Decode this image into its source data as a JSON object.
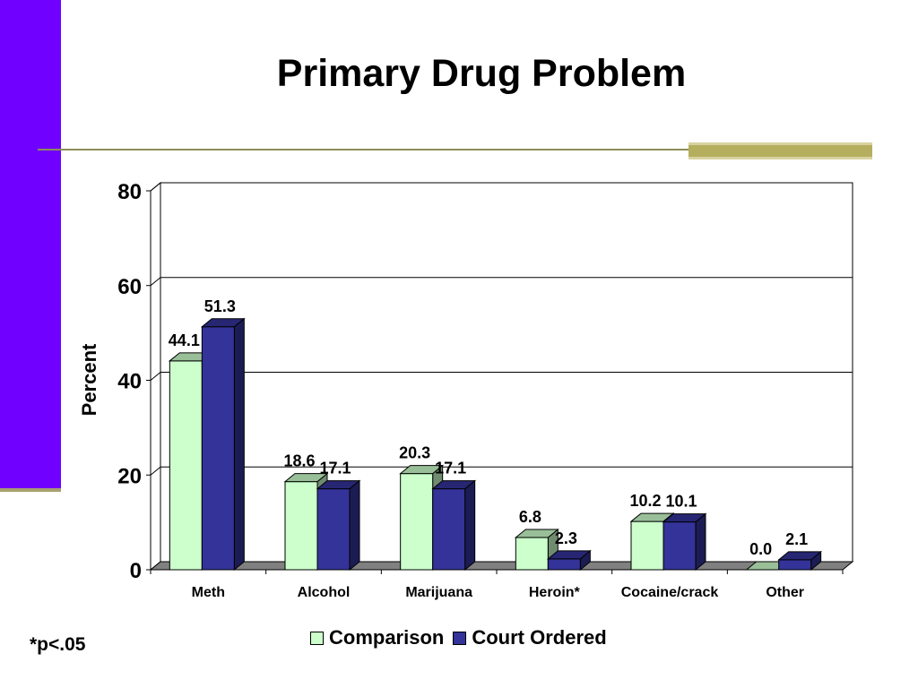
{
  "slide": {
    "title": "Primary Drug Problem",
    "footnote": "*p<.05"
  },
  "colors": {
    "side_bar": "#7000ff",
    "accent_rule": "#b5ae5e",
    "comparison": "#ccffcc",
    "court_ordered": "#333399"
  },
  "chart_data": {
    "type": "bar",
    "title": "",
    "ylabel": "Percent",
    "xlabel": "",
    "ylim": [
      0,
      80
    ],
    "yticks": [
      0,
      20,
      40,
      60,
      80
    ],
    "grid": true,
    "legend_position": "bottom",
    "categories": [
      "Meth",
      "Alcohol",
      "Marijuana",
      "Heroin*",
      "Cocaine/crack",
      "Other"
    ],
    "series": [
      {
        "name": "Comparison",
        "values": [
          44.1,
          18.6,
          20.3,
          6.8,
          10.2,
          0.0
        ],
        "labels": [
          "44.1",
          "18.6",
          "20.3",
          "6.8",
          "10.2",
          "0.0"
        ]
      },
      {
        "name": "Court Ordered",
        "values": [
          51.3,
          17.1,
          17.1,
          2.3,
          10.1,
          2.1
        ],
        "labels": [
          "51.3",
          "17.1",
          "17.1",
          "2.3",
          "10.1",
          "2.1"
        ]
      }
    ]
  }
}
